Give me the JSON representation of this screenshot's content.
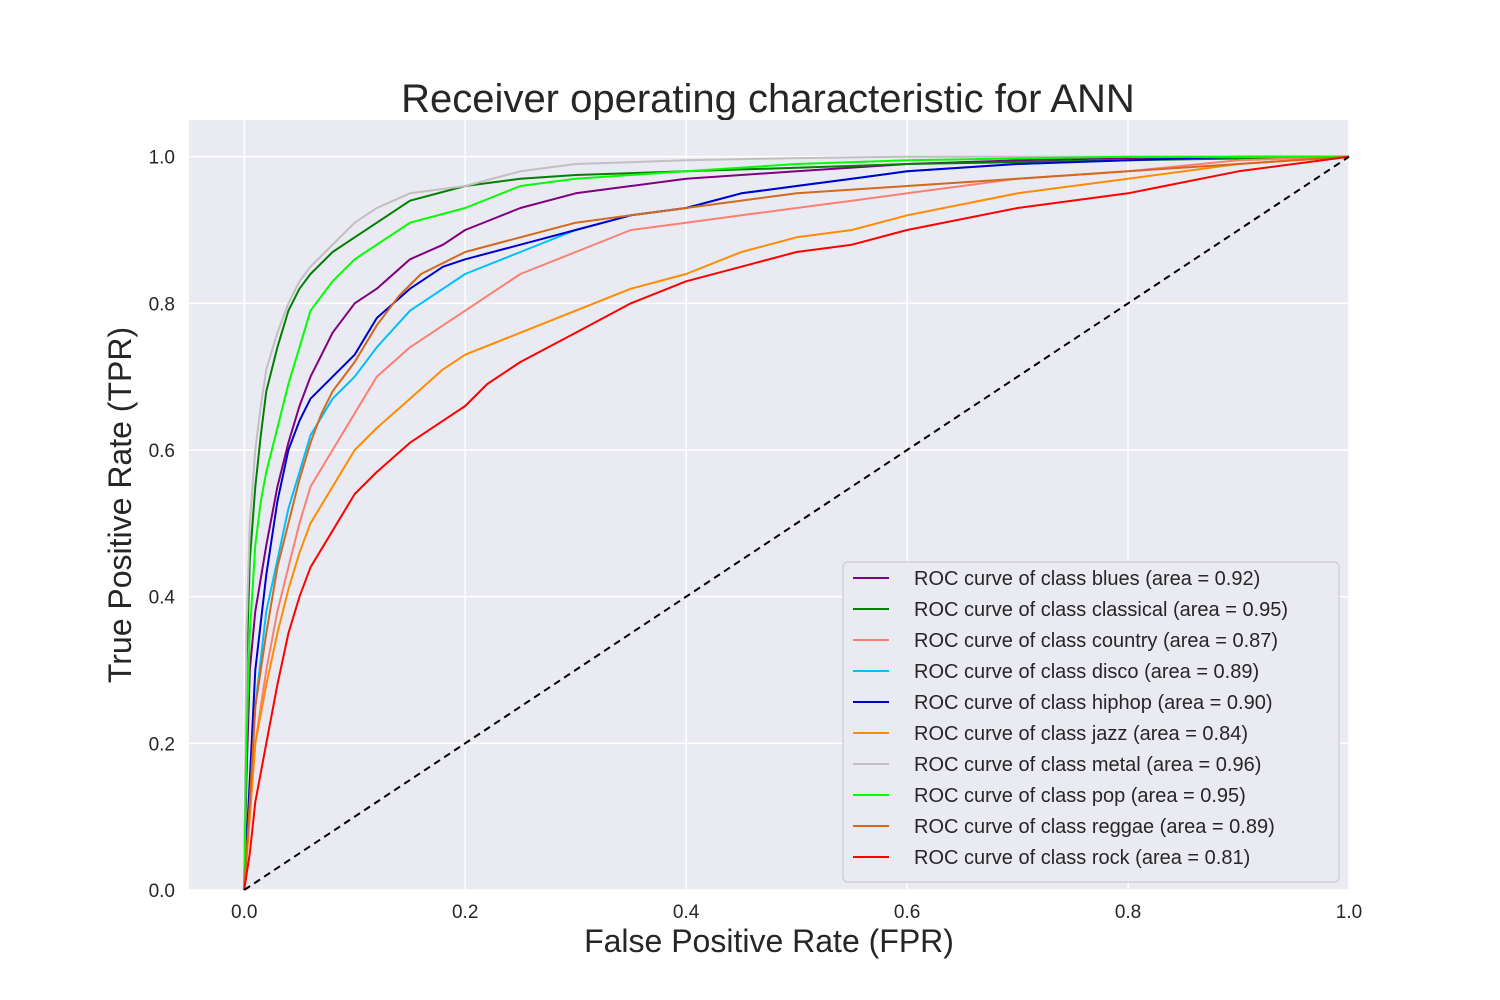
{
  "chart_data": {
    "type": "line",
    "title": "Receiver operating characteristic for ANN",
    "xlabel": "False Positive Rate (FPR)",
    "ylabel": "True Positive Rate (TPR)",
    "xlim": [
      -0.05,
      1.0
    ],
    "ylim": [
      0.0,
      1.05
    ],
    "x_ticks": [
      "0.0",
      "0.2",
      "0.4",
      "0.6",
      "0.8",
      "1.0"
    ],
    "y_ticks": [
      "0.0",
      "0.2",
      "0.4",
      "0.6",
      "0.8",
      "1.0"
    ],
    "grid": true,
    "legend_position": "lower-right",
    "background": "#eaeaf2",
    "series": [
      {
        "name": "ROC curve of class blues (area = 0.92)",
        "color": "#800080",
        "x": [
          0,
          0.002,
          0.005,
          0.01,
          0.02,
          0.03,
          0.04,
          0.05,
          0.06,
          0.07,
          0.08,
          0.1,
          0.12,
          0.15,
          0.18,
          0.2,
          0.25,
          0.3,
          0.35,
          0.4,
          0.5,
          0.6,
          0.7,
          0.8,
          0.9,
          1.0
        ],
        "y": [
          0,
          0.15,
          0.3,
          0.38,
          0.47,
          0.55,
          0.61,
          0.66,
          0.7,
          0.73,
          0.76,
          0.8,
          0.82,
          0.86,
          0.88,
          0.9,
          0.93,
          0.95,
          0.96,
          0.97,
          0.98,
          0.99,
          0.995,
          0.998,
          1.0,
          1.0
        ]
      },
      {
        "name": "ROC curve of class classical (area = 0.95)",
        "color": "#008000",
        "x": [
          0,
          0.002,
          0.005,
          0.01,
          0.015,
          0.02,
          0.03,
          0.04,
          0.05,
          0.06,
          0.08,
          0.1,
          0.12,
          0.15,
          0.2,
          0.25,
          0.3,
          0.4,
          0.5,
          0.6,
          0.8,
          1.0
        ],
        "y": [
          0,
          0.3,
          0.45,
          0.55,
          0.62,
          0.68,
          0.74,
          0.79,
          0.82,
          0.84,
          0.87,
          0.89,
          0.91,
          0.94,
          0.96,
          0.97,
          0.975,
          0.98,
          0.985,
          0.99,
          0.995,
          1.0
        ]
      },
      {
        "name": "ROC curve of class country (area = 0.87)",
        "color": "#fa8072",
        "x": [
          0,
          0.005,
          0.01,
          0.02,
          0.03,
          0.04,
          0.05,
          0.06,
          0.08,
          0.1,
          0.12,
          0.15,
          0.18,
          0.2,
          0.25,
          0.3,
          0.35,
          0.4,
          0.45,
          0.5,
          0.55,
          0.6,
          0.7,
          0.8,
          0.9,
          1.0
        ],
        "y": [
          0,
          0.1,
          0.2,
          0.3,
          0.38,
          0.44,
          0.5,
          0.55,
          0.6,
          0.65,
          0.7,
          0.74,
          0.77,
          0.79,
          0.84,
          0.87,
          0.9,
          0.91,
          0.92,
          0.93,
          0.94,
          0.95,
          0.97,
          0.98,
          0.995,
          1.0
        ]
      },
      {
        "name": "ROC curve of class disco (area = 0.89)",
        "color": "#00bfff",
        "x": [
          0,
          0.005,
          0.01,
          0.02,
          0.03,
          0.04,
          0.05,
          0.06,
          0.08,
          0.1,
          0.12,
          0.15,
          0.18,
          0.2,
          0.25,
          0.3,
          0.35,
          0.4,
          0.45,
          0.5,
          0.55,
          0.6,
          0.7,
          0.8,
          0.9,
          1.0
        ],
        "y": [
          0,
          0.12,
          0.25,
          0.38,
          0.45,
          0.52,
          0.57,
          0.62,
          0.67,
          0.7,
          0.74,
          0.79,
          0.82,
          0.84,
          0.87,
          0.9,
          0.92,
          0.93,
          0.95,
          0.96,
          0.97,
          0.98,
          0.99,
          0.995,
          1.0,
          1.0
        ]
      },
      {
        "name": "ROC curve of class hiphop (area = 0.90)",
        "color": "#0000cd",
        "x": [
          0,
          0.005,
          0.01,
          0.02,
          0.03,
          0.04,
          0.05,
          0.06,
          0.08,
          0.1,
          0.12,
          0.15,
          0.18,
          0.2,
          0.25,
          0.3,
          0.35,
          0.4,
          0.45,
          0.5,
          0.55,
          0.6,
          0.7,
          0.8,
          0.9,
          1.0
        ],
        "y": [
          0,
          0.15,
          0.3,
          0.43,
          0.53,
          0.6,
          0.64,
          0.67,
          0.7,
          0.73,
          0.78,
          0.82,
          0.85,
          0.86,
          0.88,
          0.9,
          0.92,
          0.93,
          0.95,
          0.96,
          0.97,
          0.98,
          0.99,
          0.995,
          1.0,
          1.0
        ]
      },
      {
        "name": "ROC curve of class jazz (area = 0.84)",
        "color": "#ff8c00",
        "x": [
          0,
          0.005,
          0.01,
          0.02,
          0.03,
          0.04,
          0.05,
          0.06,
          0.08,
          0.1,
          0.12,
          0.15,
          0.18,
          0.2,
          0.25,
          0.3,
          0.35,
          0.4,
          0.45,
          0.5,
          0.55,
          0.6,
          0.7,
          0.8,
          0.9,
          1.0
        ],
        "y": [
          0,
          0.1,
          0.2,
          0.28,
          0.35,
          0.41,
          0.46,
          0.5,
          0.55,
          0.6,
          0.63,
          0.67,
          0.71,
          0.73,
          0.76,
          0.79,
          0.82,
          0.84,
          0.87,
          0.89,
          0.9,
          0.92,
          0.95,
          0.97,
          0.99,
          1.0
        ]
      },
      {
        "name": "ROC curve of class metal (area = 0.96)",
        "color": "#c0c0c0",
        "x": [
          0,
          0.002,
          0.005,
          0.01,
          0.015,
          0.02,
          0.03,
          0.04,
          0.05,
          0.06,
          0.08,
          0.1,
          0.12,
          0.15,
          0.2,
          0.25,
          0.3,
          0.4,
          0.5,
          0.6,
          0.8,
          1.0
        ],
        "y": [
          0,
          0.35,
          0.5,
          0.6,
          0.66,
          0.71,
          0.76,
          0.8,
          0.83,
          0.85,
          0.88,
          0.91,
          0.93,
          0.95,
          0.96,
          0.98,
          0.99,
          0.995,
          0.998,
          1.0,
          1.0,
          1.0
        ]
      },
      {
        "name": "ROC curve of class pop (area = 0.95)",
        "color": "#00ff00",
        "x": [
          0,
          0.002,
          0.005,
          0.01,
          0.015,
          0.02,
          0.03,
          0.04,
          0.05,
          0.06,
          0.08,
          0.1,
          0.12,
          0.15,
          0.2,
          0.25,
          0.3,
          0.4,
          0.5,
          0.6,
          0.8,
          1.0
        ],
        "y": [
          0,
          0.2,
          0.35,
          0.47,
          0.53,
          0.57,
          0.63,
          0.69,
          0.74,
          0.79,
          0.83,
          0.86,
          0.88,
          0.91,
          0.93,
          0.96,
          0.97,
          0.98,
          0.99,
          0.995,
          1.0,
          1.0
        ]
      },
      {
        "name": "ROC curve of class reggae (area = 0.89)",
        "color": "#d2691e",
        "x": [
          0,
          0.005,
          0.01,
          0.02,
          0.03,
          0.04,
          0.05,
          0.06,
          0.07,
          0.08,
          0.1,
          0.12,
          0.14,
          0.16,
          0.2,
          0.25,
          0.3,
          0.35,
          0.4,
          0.5,
          0.6,
          0.7,
          0.8,
          0.9,
          1.0
        ],
        "y": [
          0,
          0.12,
          0.25,
          0.35,
          0.44,
          0.5,
          0.56,
          0.61,
          0.65,
          0.68,
          0.72,
          0.77,
          0.81,
          0.84,
          0.87,
          0.89,
          0.91,
          0.92,
          0.93,
          0.95,
          0.96,
          0.97,
          0.98,
          0.99,
          1.0
        ]
      },
      {
        "name": "ROC curve of class rock (area = 0.81)",
        "color": "#ff0000",
        "x": [
          0,
          0.005,
          0.01,
          0.02,
          0.03,
          0.04,
          0.05,
          0.06,
          0.08,
          0.1,
          0.12,
          0.15,
          0.18,
          0.2,
          0.22,
          0.25,
          0.3,
          0.35,
          0.4,
          0.45,
          0.5,
          0.55,
          0.6,
          0.7,
          0.8,
          0.9,
          1.0
        ],
        "y": [
          0,
          0.05,
          0.12,
          0.2,
          0.28,
          0.35,
          0.4,
          0.44,
          0.49,
          0.54,
          0.57,
          0.61,
          0.64,
          0.66,
          0.69,
          0.72,
          0.76,
          0.8,
          0.83,
          0.85,
          0.87,
          0.88,
          0.9,
          0.93,
          0.95,
          0.98,
          1.0
        ]
      },
      {
        "name": "",
        "color": "#000000",
        "dashed": true,
        "x": [
          0,
          1
        ],
        "y": [
          0,
          1
        ]
      }
    ]
  }
}
